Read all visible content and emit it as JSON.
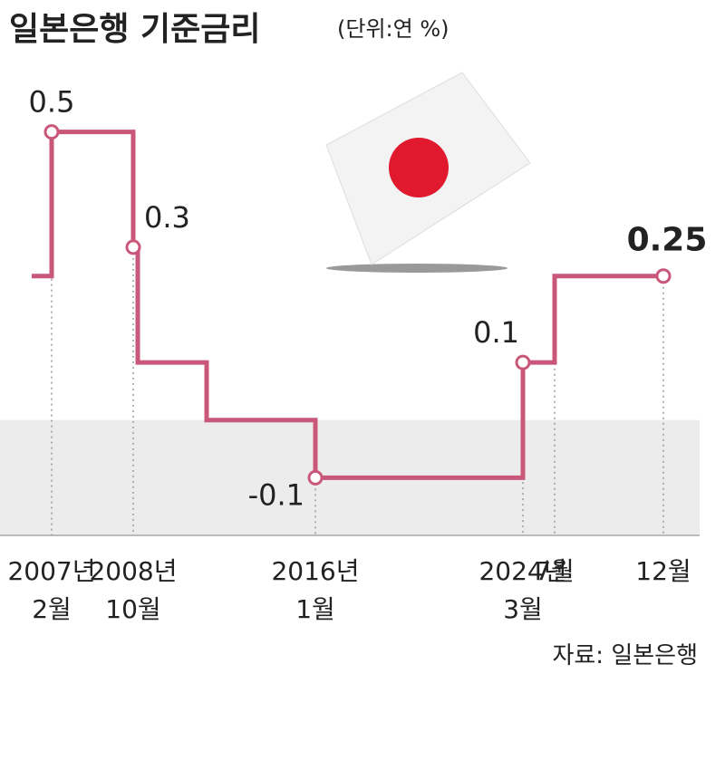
{
  "chart_data": {
    "type": "step",
    "title": "일본은행 기준금리",
    "subtitle": "(단위:연 %)",
    "source": "자료: 일본은행",
    "categories": [
      null,
      "2007년 2월",
      "2008년 10월",
      null,
      null,
      "2016년 1월",
      "2024년 3월",
      "7월",
      "12월"
    ],
    "values": [
      0.25,
      0.5,
      0.3,
      0.1,
      0,
      -0.1,
      0.1,
      0.25,
      0.25
    ],
    "value_labels": [
      null,
      "0.5",
      "0.3",
      null,
      null,
      "-0.1",
      "0.1",
      null,
      "0.25"
    ],
    "color": "#c9577a",
    "ylim": [
      -0.2,
      0.6
    ]
  }
}
